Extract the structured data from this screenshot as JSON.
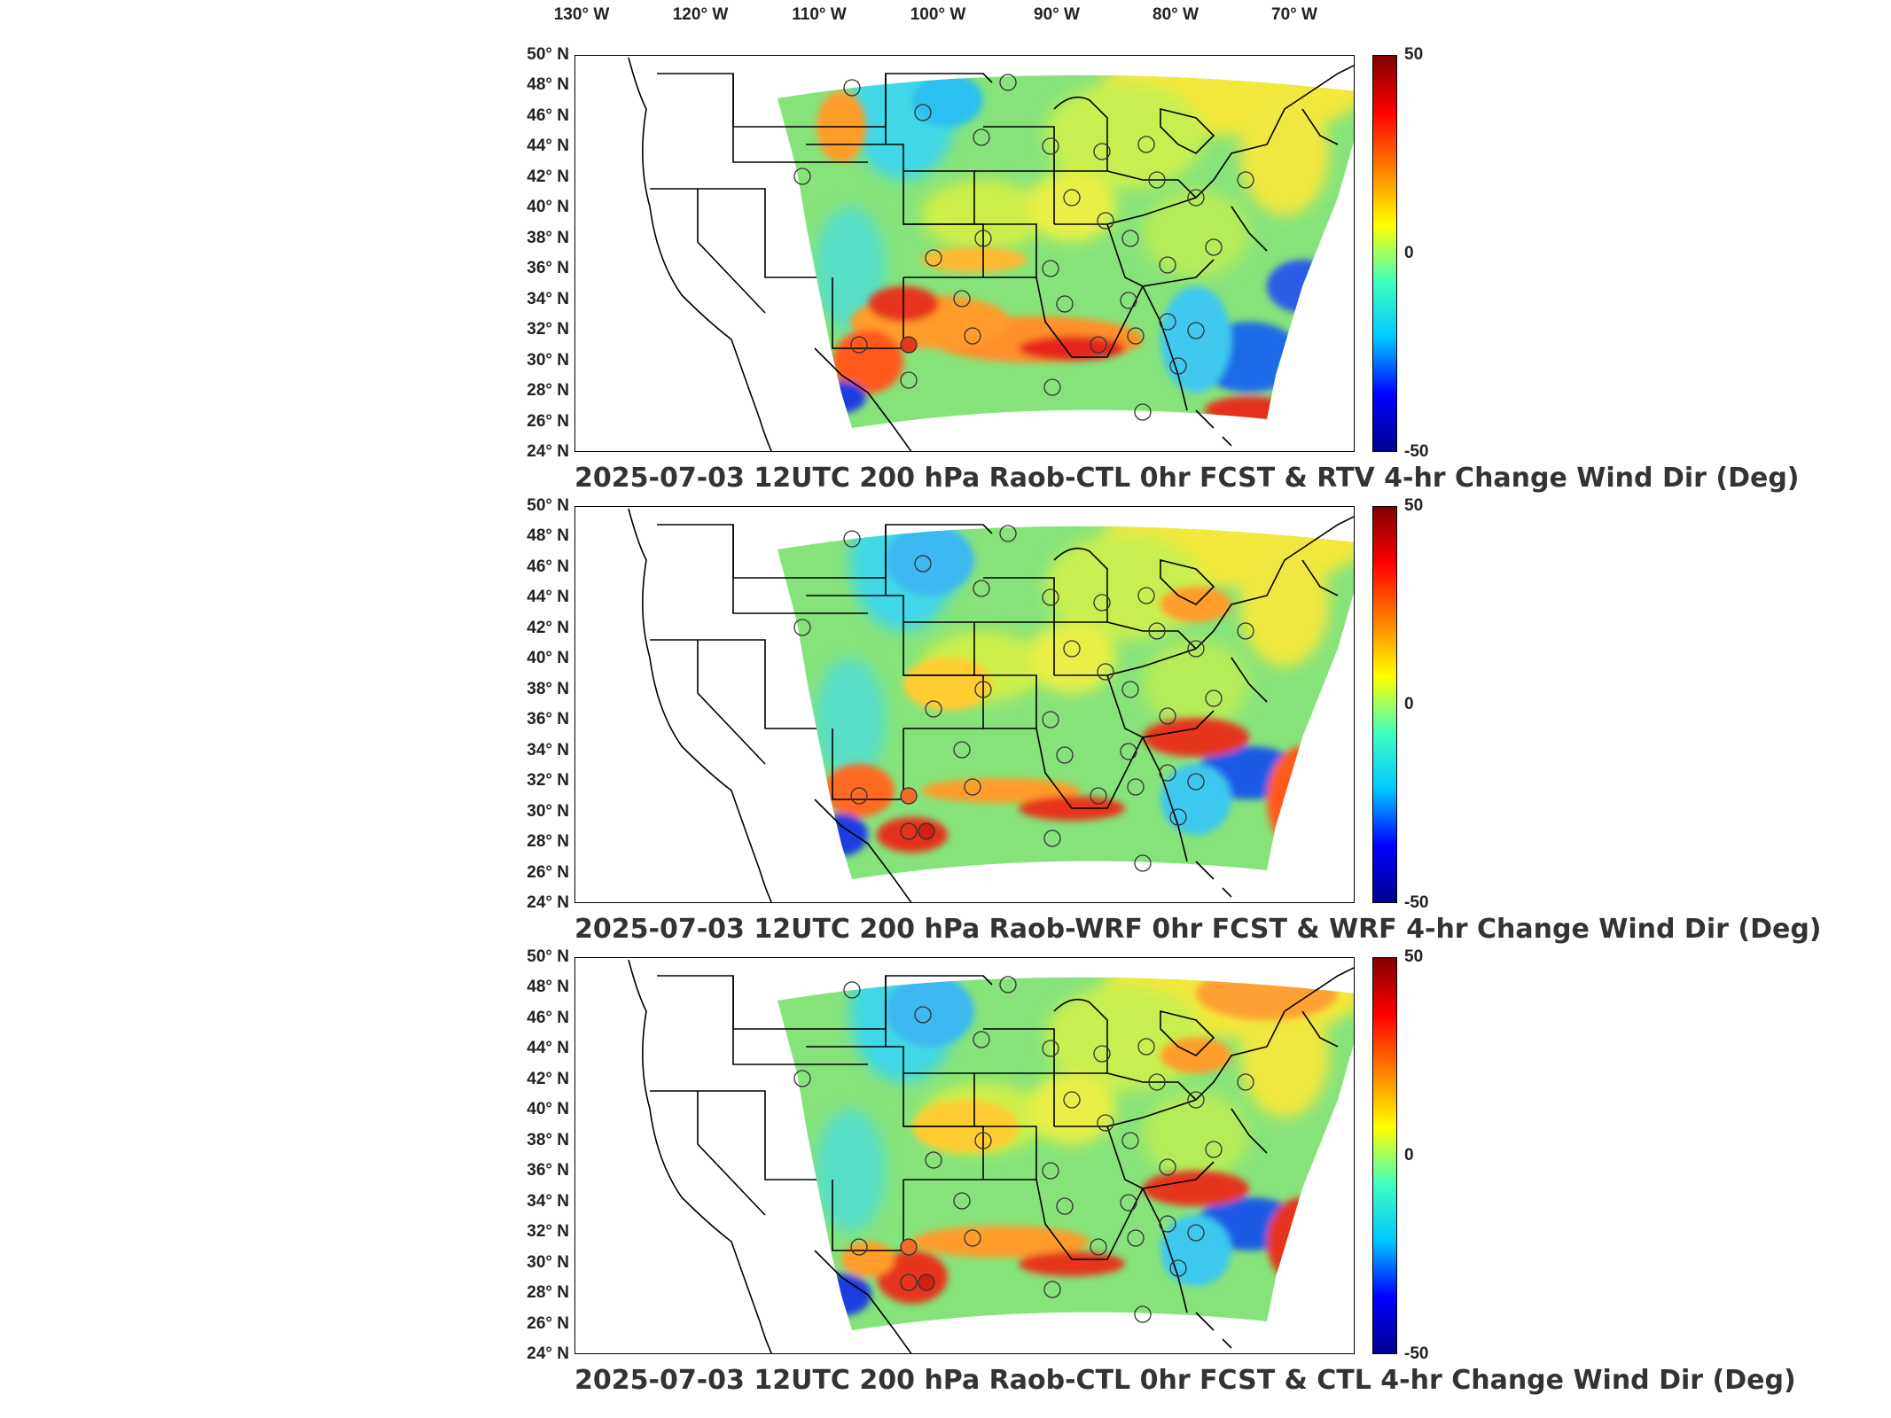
{
  "lon_labels": [
    "130° W",
    "120° W",
    "110° W",
    "100° W",
    "90° W",
    "80° W",
    "70° W"
  ],
  "lat_labels": [
    "50° N",
    "48° N",
    "46° N",
    "44° N",
    "42° N",
    "40° N",
    "38° N",
    "36° N",
    "34° N",
    "32° N",
    "30° N",
    "28° N",
    "26° N",
    "24° N"
  ],
  "colorbar": {
    "max_label": "50",
    "mid_label": "0",
    "min_label": "-50",
    "colormap": "jet",
    "colors": [
      "#00008f",
      "#0000ff",
      "#00c8ff",
      "#40ffbf",
      "#ffff00",
      "#ff8000",
      "#ff0000",
      "#800000"
    ]
  },
  "panels": [
    {
      "title": "2025-07-03 12UTC 200 hPa Raob-CTL 0hr FCST & RTV 4-hr Change Wind Dir (Deg)"
    },
    {
      "title": "2025-07-03 12UTC 200 hPa Raob-WRF 0hr FCST & WRF 4-hr Change Wind Dir (Deg)"
    },
    {
      "title": "2025-07-03 12UTC 200 hPa Raob-CTL 0hr FCST & CTL 4-hr Change Wind Dir (Deg)"
    }
  ],
  "field_colors": {
    "background_field": "#7fe27a",
    "yellow": "#f2f23a",
    "orange": "#ff9d2a",
    "red": "#e8321c",
    "dark_red": "#a00010",
    "cyan": "#3cd6ef",
    "blue": "#1a55e6",
    "dark_blue": "#0a0a9a"
  }
}
